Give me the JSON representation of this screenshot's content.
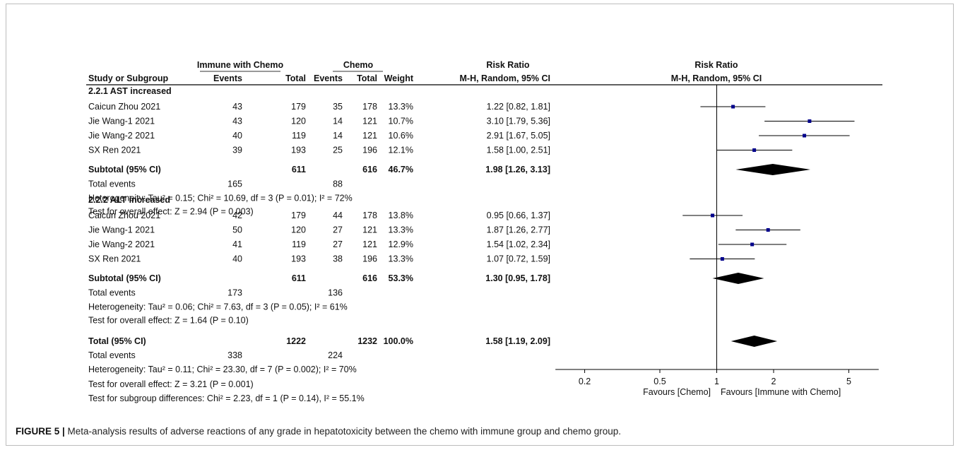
{
  "chart_data": {
    "type": "forest",
    "header": {
      "group1": "Immune with Chemo",
      "group2": "Chemo",
      "effect": "Risk Ratio",
      "col_study": "Study or Subgroup",
      "col_events1": "Events",
      "col_total1": "Total",
      "col_events2": "Events",
      "col_total2": "Total",
      "col_weight": "Weight",
      "col_method": "M-H, Random, 95% CI",
      "plot_title": "Risk Ratio",
      "plot_method": "M-H, Random, 95% CI"
    },
    "subgroups": [
      {
        "title": "2.2.1 AST increased",
        "studies": [
          {
            "name": "Caicun Zhou 2021",
            "e1": "43",
            "t1": "179",
            "e2": "35",
            "t2": "178",
            "weight": "13.3%",
            "ci_text": "1.22 [0.82, 1.81]",
            "rr": 1.22,
            "lo": 0.82,
            "hi": 1.81
          },
          {
            "name": "Jie Wang-1 2021",
            "e1": "43",
            "t1": "120",
            "e2": "14",
            "t2": "121",
            "weight": "10.7%",
            "ci_text": "3.10 [1.79, 5.36]",
            "rr": 3.1,
            "lo": 1.79,
            "hi": 5.36
          },
          {
            "name": "Jie Wang-2 2021",
            "e1": "40",
            "t1": "119",
            "e2": "14",
            "t2": "121",
            "weight": "10.6%",
            "ci_text": "2.91 [1.67, 5.05]",
            "rr": 2.91,
            "lo": 1.67,
            "hi": 5.05
          },
          {
            "name": "SX Ren 2021",
            "e1": "39",
            "t1": "193",
            "e2": "25",
            "t2": "196",
            "weight": "12.1%",
            "ci_text": "1.58 [1.00, 2.51]",
            "rr": 1.58,
            "lo": 1.0,
            "hi": 2.51
          }
        ],
        "subtotal": {
          "label": "Subtotal (95% CI)",
          "t1": "611",
          "t2": "616",
          "weight": "46.7%",
          "ci_text": "1.98 [1.26, 3.13]",
          "rr": 1.98,
          "lo": 1.26,
          "hi": 3.13
        },
        "events": {
          "label": "Total events",
          "e1": "165",
          "e2": "88"
        },
        "heterogeneity": "Heterogeneity: Tau² = 0.15; Chi² = 10.69, df = 3 (P = 0.01); I² = 72%",
        "overall": "Test for overall effect: Z = 2.94 (P = 0.003)"
      },
      {
        "title": "2.2.2 ALT increased",
        "studies": [
          {
            "name": "Caicun Zhou 2021",
            "e1": "42",
            "t1": "179",
            "e2": "44",
            "t2": "178",
            "weight": "13.8%",
            "ci_text": "0.95 [0.66, 1.37]",
            "rr": 0.95,
            "lo": 0.66,
            "hi": 1.37
          },
          {
            "name": "Jie Wang-1 2021",
            "e1": "50",
            "t1": "120",
            "e2": "27",
            "t2": "121",
            "weight": "13.3%",
            "ci_text": "1.87 [1.26, 2.77]",
            "rr": 1.87,
            "lo": 1.26,
            "hi": 2.77
          },
          {
            "name": "Jie Wang-2 2021",
            "e1": "41",
            "t1": "119",
            "e2": "27",
            "t2": "121",
            "weight": "12.9%",
            "ci_text": "1.54 [1.02, 2.34]",
            "rr": 1.54,
            "lo": 1.02,
            "hi": 2.34
          },
          {
            "name": "SX Ren 2021",
            "e1": "40",
            "t1": "193",
            "e2": "38",
            "t2": "196",
            "weight": "13.3%",
            "ci_text": "1.07 [0.72, 1.59]",
            "rr": 1.07,
            "lo": 0.72,
            "hi": 1.59
          }
        ],
        "subtotal": {
          "label": "Subtotal (95% CI)",
          "t1": "611",
          "t2": "616",
          "weight": "53.3%",
          "ci_text": "1.30 [0.95, 1.78]",
          "rr": 1.3,
          "lo": 0.95,
          "hi": 1.78
        },
        "events": {
          "label": "Total events",
          "e1": "173",
          "e2": "136"
        },
        "heterogeneity": "Heterogeneity: Tau² = 0.06; Chi² = 7.63, df = 3 (P = 0.05); I² = 61%",
        "overall": "Test for overall effect: Z = 1.64 (P = 0.10)"
      }
    ],
    "total": {
      "label": "Total (95% CI)",
      "t1": "1222",
      "t2": "1232",
      "weight": "100.0%",
      "ci_text": "1.58 [1.19, 2.09]",
      "rr": 1.58,
      "lo": 1.19,
      "hi": 2.09
    },
    "total_events": {
      "label": "Total events",
      "e1": "338",
      "e2": "224"
    },
    "total_heterogeneity": "Heterogeneity: Tau² = 0.11; Chi² = 23.30, df = 7 (P = 0.002); I² = 70%",
    "total_overall": "Test for overall effect: Z = 3.21 (P = 0.001)",
    "subgroup_test": "Test for subgroup differences: Chi² = 2.23, df = 1 (P = 0.14), I² = 55.1%",
    "axis": {
      "scale": "log",
      "ticks": [
        0.2,
        0.5,
        1,
        2,
        5
      ],
      "tick_labels": [
        "0.2",
        "0.5",
        "1",
        "2",
        "5"
      ],
      "xlim": [
        0.14,
        7.2
      ],
      "null_value": 1
    },
    "favours_left": "Favours [Chemo]",
    "favours_right": "Favours [Immune with Chemo]",
    "colors": {
      "square": "#00008b",
      "diamond": "#000000",
      "line": "#000000"
    }
  },
  "caption": {
    "label": "FIGURE 5 |",
    "text": " Meta-analysis results of adverse reactions of any grade in hepatotoxicity between the chemo with immune group and chemo group."
  }
}
